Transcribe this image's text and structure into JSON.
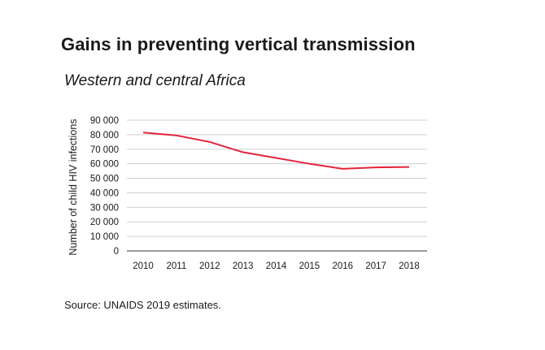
{
  "title": "Gains in preventing vertical transmission",
  "subtitle": "Western and central Africa",
  "source": "Source: UNAIDS 2019 estimates.",
  "colors": {
    "line": "#e2243b",
    "grid": "#cfcfcf",
    "axis": "#333333"
  },
  "chart_data": {
    "type": "line",
    "title": "Gains in preventing vertical transmission",
    "subtitle": "Western and central Africa",
    "xlabel": "",
    "ylabel": "Number of child HIV infections",
    "ylim": [
      0,
      90000
    ],
    "y_ticks": [
      0,
      10000,
      20000,
      30000,
      40000,
      50000,
      60000,
      70000,
      80000,
      90000
    ],
    "y_tick_labels": [
      "0",
      "10 000",
      "20 000",
      "30 000",
      "40 000",
      "50 000",
      "60 000",
      "70 000",
      "80 000",
      "90 000"
    ],
    "categories": [
      "2010",
      "2011",
      "2012",
      "2013",
      "2014",
      "2015",
      "2016",
      "2017",
      "2018"
    ],
    "series": [
      {
        "values": [
          81500,
          79500,
          75000,
          68000,
          64000,
          60000,
          56500,
          57500,
          57800
        ]
      }
    ],
    "grid": true,
    "legend": "none"
  }
}
